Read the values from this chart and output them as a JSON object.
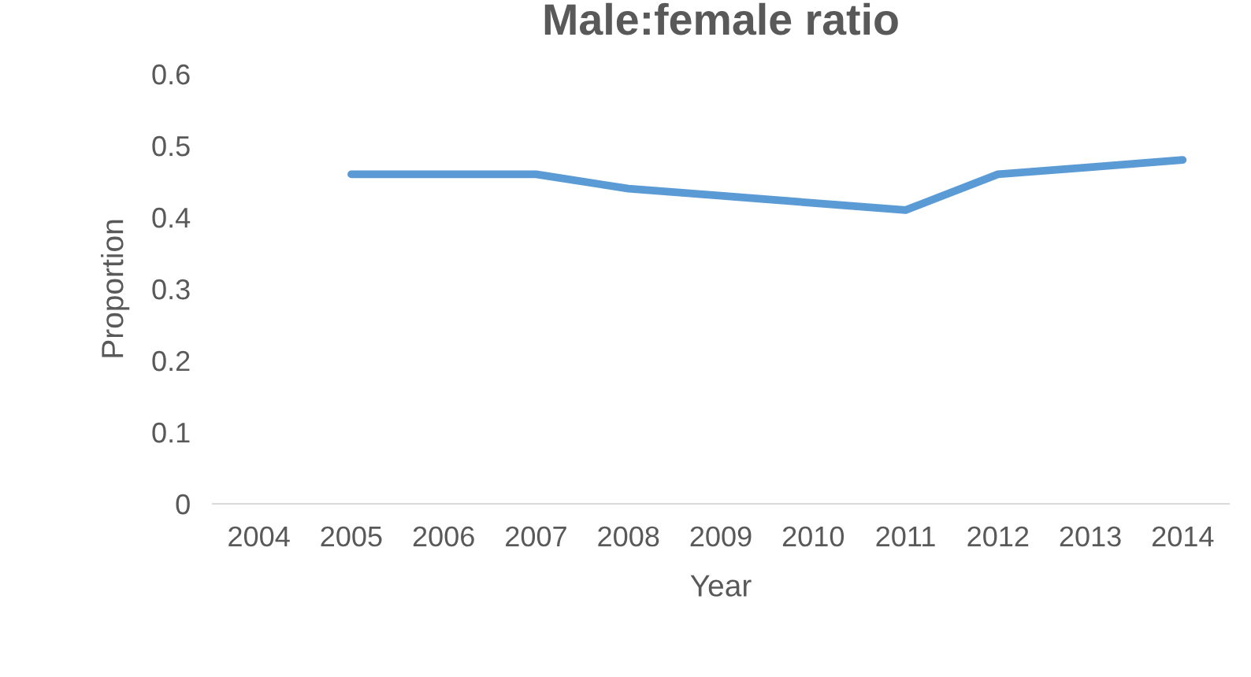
{
  "chart_data": {
    "type": "line",
    "title": "Male:female ratio",
    "xlabel": "Year",
    "ylabel": "Proportion",
    "categories": [
      "2004",
      "2005",
      "2006",
      "2007",
      "2008",
      "2009",
      "2010",
      "2011",
      "2012",
      "2013",
      "2014"
    ],
    "series": [
      {
        "color": "#5b9bd5",
        "values": [
          null,
          0.46,
          0.46,
          0.46,
          0.44,
          0.43,
          0.42,
          0.41,
          0.46,
          0.47,
          0.48
        ]
      }
    ],
    "ylim": [
      0,
      0.6
    ],
    "yticks": [
      0,
      0.1,
      0.2,
      0.3,
      0.4,
      0.5,
      0.6
    ],
    "grid": false,
    "legend": false,
    "marker": "none",
    "line_style": "solid"
  }
}
